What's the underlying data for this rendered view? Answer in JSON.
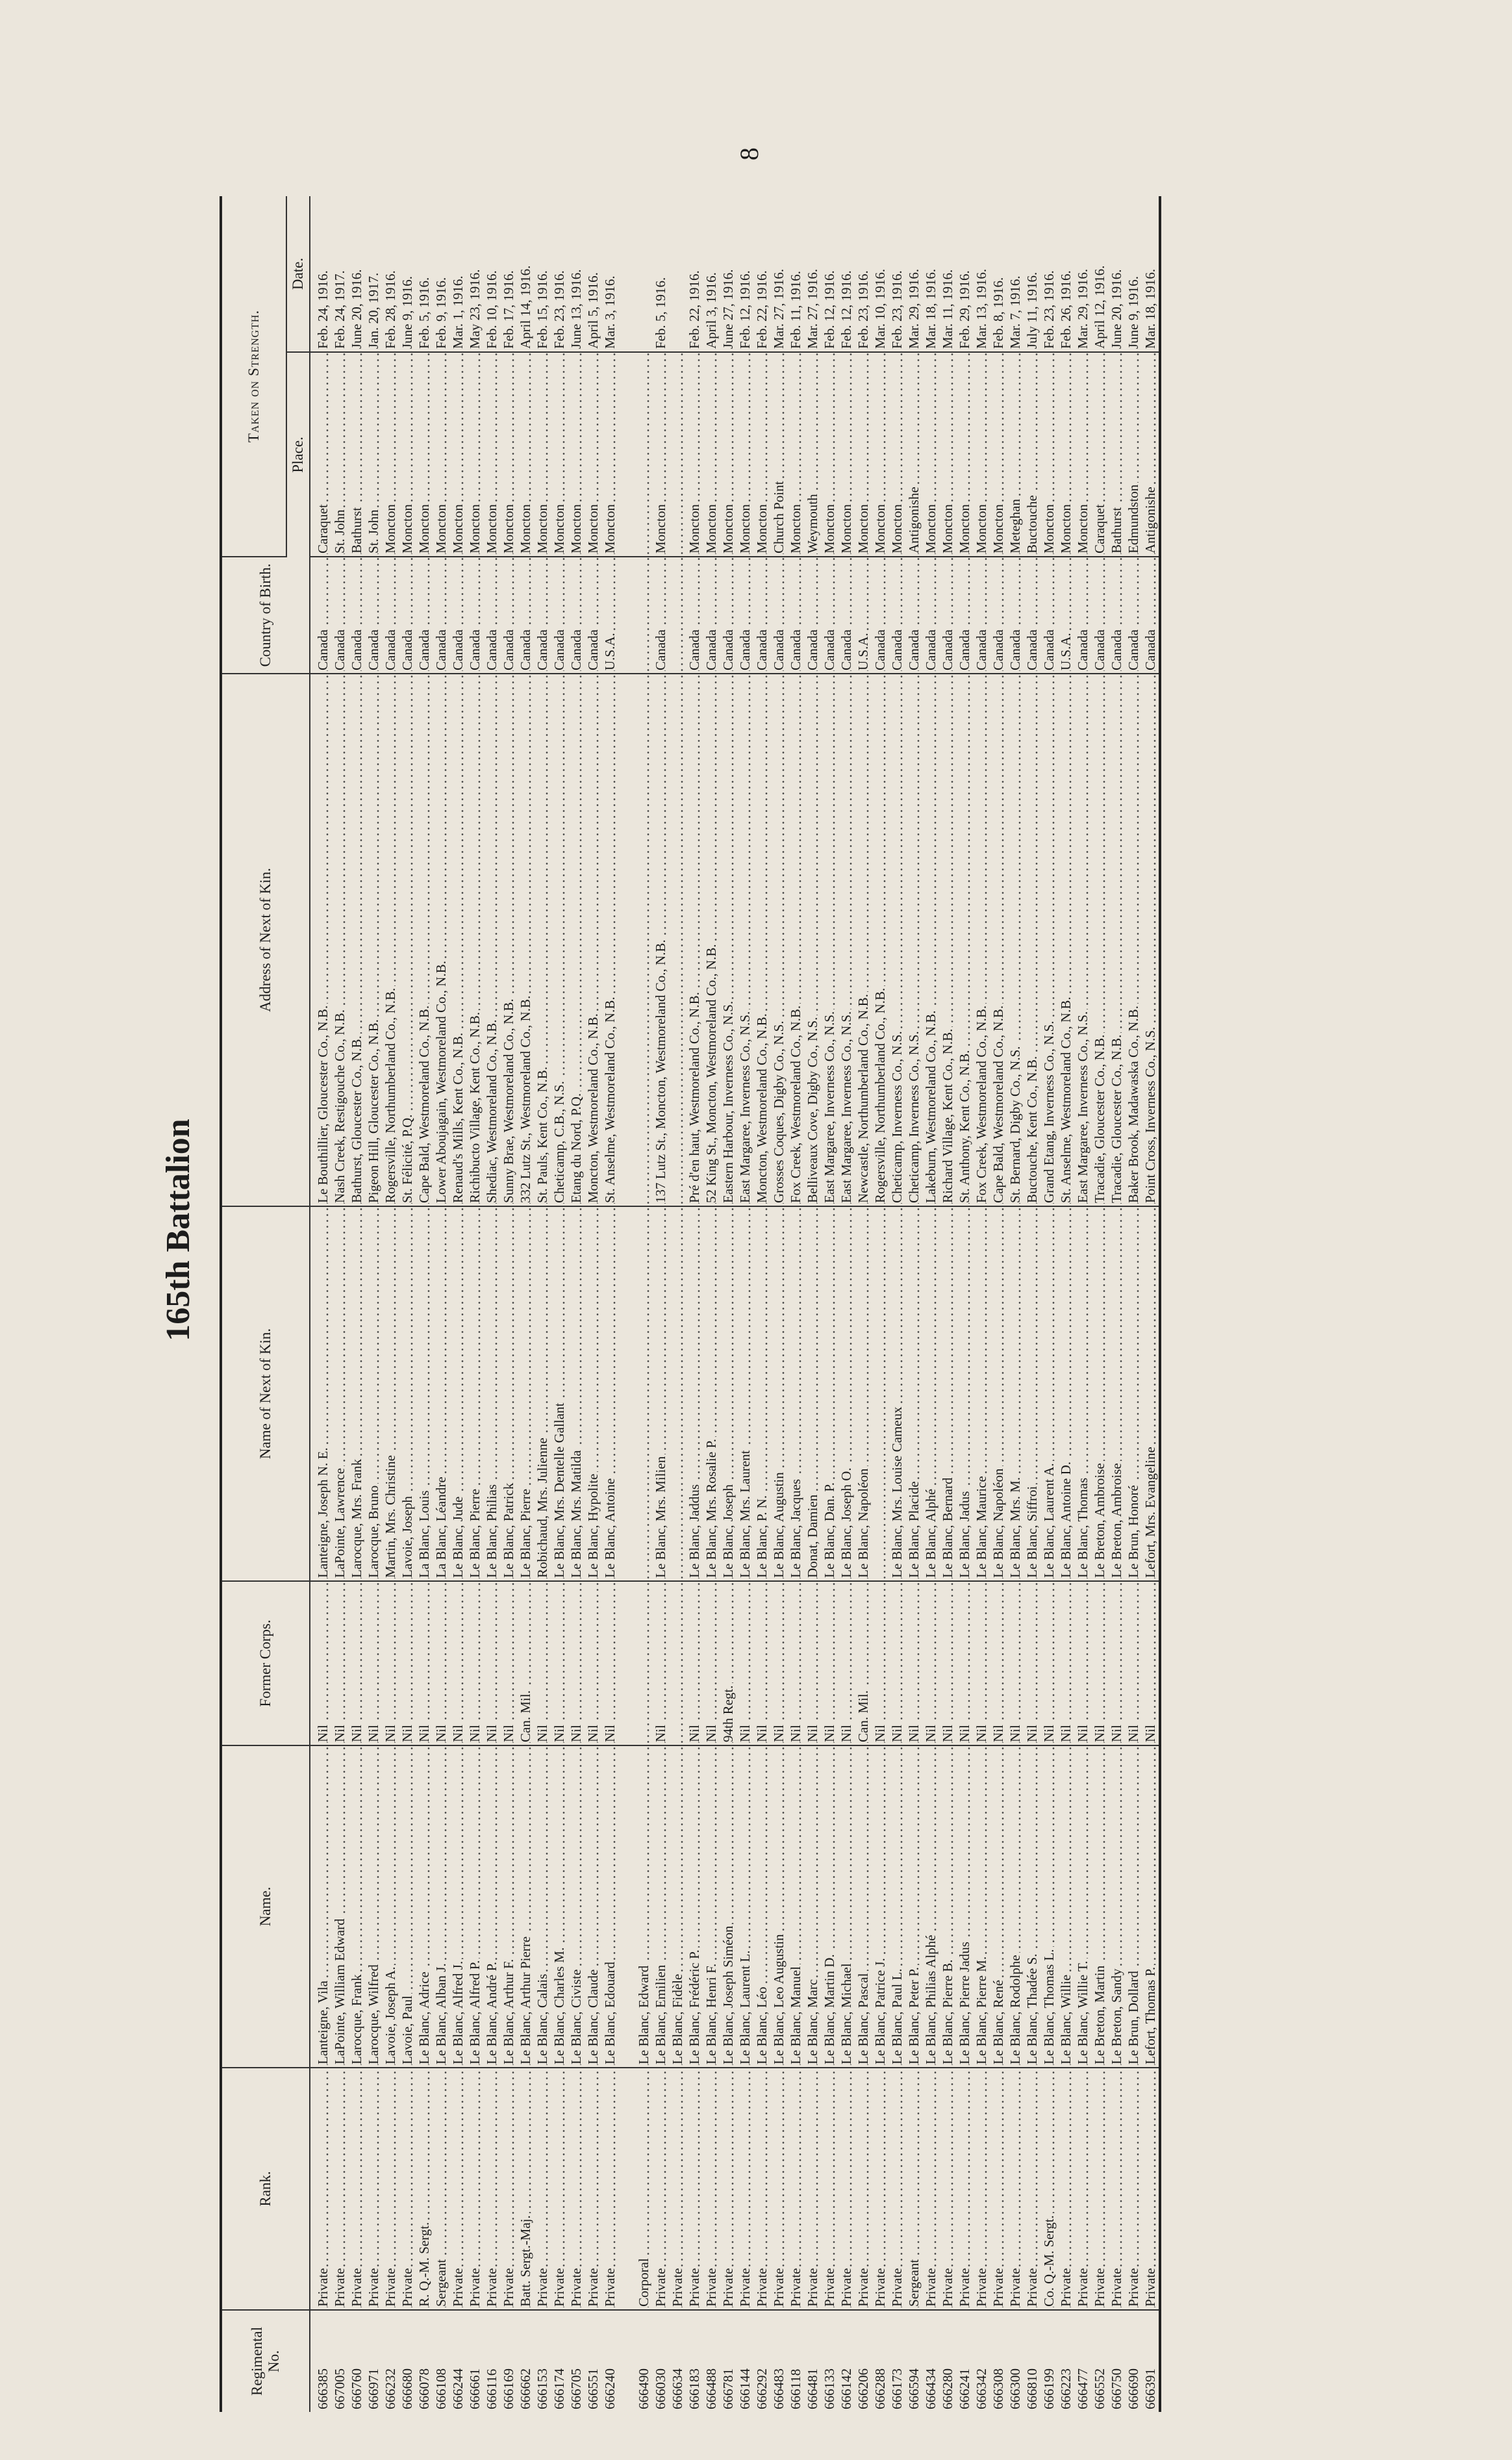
{
  "header": {
    "title": "165th Battalion",
    "page_number": "8"
  },
  "table": {
    "group_header": "Taken on Strength.",
    "columns": [
      "Regimental No.",
      "Rank.",
      "Name.",
      "Former Corps.",
      "Name of Next of Kin.",
      "Address of Next of Kin.",
      "Country of Birth.",
      "Place.",
      "Date."
    ],
    "rows": [
      [
        "666385",
        "Private",
        "Lanteigne, Vila",
        "Nil",
        "Lanteigne, Joseph N. E.",
        "Le Bouthillier, Gloucester Co., N.B.",
        "Canada",
        "Caraquet",
        "Feb. 24, 1916."
      ],
      [
        "667005",
        "Private",
        "LaPointe, William Edward",
        "Nil",
        "LaPointe, Lawrence",
        "Nash Creek, Restigouche Co., N.B.",
        "Canada",
        "St. John",
        "Feb. 24, 1917."
      ],
      [
        "666760",
        "Private",
        "Larocque, Frank",
        "Nil",
        "Larocque, Mrs. Frank",
        "Bathurst, Gloucester Co., N.B.",
        "Canada",
        "Bathurst",
        "June 20, 1916."
      ],
      [
        "666971",
        "Private",
        "Larocque, Wilfred",
        "Nil",
        "Larocque, Bruno",
        "Pigeon Hill, Gloucester Co., N.B.",
        "Canada",
        "St. John",
        "Jan. 20, 1917."
      ],
      [
        "666232",
        "Private",
        "Lavoie, Joseph A.",
        "Nil",
        "Martin, Mrs. Christine",
        "Rogersville, Northumberland Co., N.B.",
        "Canada",
        "Moncton",
        "Feb. 28, 1916."
      ],
      [
        "666680",
        "Private",
        "Lavoie, Paul",
        "Nil",
        "Lavoie, Joseph",
        "St. Félicité, P.Q.",
        "Canada",
        "Moncton",
        "June 9, 1916."
      ],
      [
        "666078",
        "R. Q.-M. Sergt.",
        "Le Blanc, Adrice",
        "Nil",
        "La Blanc, Louis",
        "Cape Bald, Westmoreland Co., N.B.",
        "Canada",
        "Moncton",
        "Feb. 5, 1916."
      ],
      [
        "666108",
        "Sergeant",
        "Le Blanc, Alban J.",
        "Nil",
        "La Blanc, Léandre",
        "Lower Aboujagain, Westmoreland Co., N.B.",
        "Canada",
        "Moncton",
        "Feb. 9, 1916."
      ],
      [
        "666244",
        "Private",
        "Le Blanc, Alfred J.",
        "Nil",
        "Le Blanc, Jude",
        "Renaud's Mills, Kent Co., N.B.",
        "Canada",
        "Moncton",
        "Mar. 1, 1916."
      ],
      [
        "666661",
        "Private",
        "Le Blanc, Alfred P.",
        "Nil",
        "Le Blanc, Pierre",
        "Richibucto Village, Kent Co., N.B.",
        "Canada",
        "Moncton",
        "May 23, 1916."
      ],
      [
        "666116",
        "Private",
        "Le Blanc, André P.",
        "Nil",
        "Le Blanc, Philias",
        "Shediac, Westmoreland Co., N.B.",
        "Canada",
        "Moncton",
        "Feb. 10, 1916."
      ],
      [
        "666169",
        "Private",
        "Le Blanc, Arthur F.",
        "Nil",
        "Le Blanc, Patrick",
        "Sunny Brae, Westmoreland Co., N.B.",
        "Canada",
        "Moncton",
        "Feb. 17, 1916."
      ],
      [
        "666662",
        "Batt. Sergt.-Maj.",
        "Le Blanc, Arthur Pierre",
        "Can. Mil.",
        "Le Blanc, Pierre",
        "332 Lutz St., Westmoreland Co., N.B.",
        "Canada",
        "Moncton",
        "April 14, 1916."
      ],
      [
        "666153",
        "Private",
        "Le Blanc, Calais",
        "Nil",
        "Robichaud, Mrs. Julienne",
        "St. Pauls, Kent Co., N.B.",
        "Canada",
        "Moncton",
        "Feb. 15, 1916."
      ],
      [
        "666174",
        "Private",
        "Le Blanc, Charles M.",
        "Nil",
        "Le Blanc, Mrs. Dentelle Gallant",
        "Cheticamp, C.B., N.S.",
        "Canada",
        "Moncton",
        "Feb. 23, 1916."
      ],
      [
        "666705",
        "Private",
        "Le Blanc, Civiste",
        "Nil",
        "Le Blanc, Mrs. Matilda",
        "Etang du Nord, P.Q.",
        "Canada",
        "Moncton",
        "June 13, 1916."
      ],
      [
        "666551",
        "Private",
        "Le Blanc, Claude",
        "Nil",
        "Le Blanc, Hypolite",
        "Moncton, Westmoreland Co., N.B.",
        "Canada",
        "Moncton",
        "April 5, 1916."
      ],
      [
        "666240",
        "Private",
        "Le Blanc, Edouard",
        "Nil",
        "Le Blanc, Antoine",
        "St. Anselme, Westmoreland Co., N.B.",
        "U.S.A.",
        "Moncton",
        "Mar. 3, 1916."
      ],
      [
        "666490",
        "Corporal",
        "Le Blanc, Edward",
        null,
        null,
        null,
        null,
        null,
        null
      ],
      [
        "666030",
        "Private",
        "Le Blanc, Emilien",
        "Nil",
        "Le Blanc, Mrs. Milien",
        "137 Lutz St., Moncton, Westmoreland Co., N.B.",
        "Canada",
        "Moncton",
        "Feb. 5, 1916."
      ],
      [
        "666634",
        "Private",
        "Le Blanc, Fidèle",
        null,
        null,
        null,
        null,
        null,
        null
      ],
      [
        "666183",
        "Private",
        "Le Blanc, Frédéric P.",
        "Nil",
        "Le Blanc, Jaddus",
        "Pré d'en haut, Westmoreland Co., N.B.",
        "Canada",
        "Moncton",
        "Feb. 22, 1916."
      ],
      [
        "666488",
        "Private",
        "Le Blanc, Henri F.",
        "Nil",
        "Le Blanc, Mrs. Rosalie P.",
        "52 King St., Moncton, Westmoreland Co., N.B.",
        "Canada",
        "Moncton",
        "April 3, 1916."
      ],
      [
        "666781",
        "Private",
        "Le Blanc, Joseph Siméon",
        "94th Regt.",
        "Le Blanc, Joseph",
        "Eastern Harbour, Inverness Co., N.S.",
        "Canada",
        "Moncton",
        "June 27, 1916."
      ],
      [
        "666144",
        "Private",
        "Le Blanc, Laurent L.",
        "Nil",
        "Le Blanc, Mrs. Laurent",
        "East Margaree, Inverness Co., N.S.",
        "Canada",
        "Moncton",
        "Feb. 12, 1916."
      ],
      [
        "666292",
        "Private",
        "Le Blanc, Léo",
        "Nil",
        "Le Blanc, P. N.",
        "Moncton, Westmoreland Co., N.B.",
        "Canada",
        "Moncton",
        "Feb. 22, 1916."
      ],
      [
        "666483",
        "Private",
        "Le Blanc, Leo Augustin",
        "Nil",
        "Le Blanc, Augustin",
        "Grosses Coques, Digby Co., N.S.",
        "Canada",
        "Church Point",
        "Mar. 27, 1916."
      ],
      [
        "666118",
        "Private",
        "Le Blanc, Manuel",
        "Nil",
        "Le Blanc, Jacques",
        "Fox Creek, Westmoreland Co., N.B.",
        "Canada",
        "Moncton",
        "Feb. 11, 1916."
      ],
      [
        "666481",
        "Private",
        "Le Blanc, Marc",
        "Nil",
        "Donat, Damien",
        "Belliveaux Cove, Digby Co., N.S.",
        "Canada",
        "Weymouth",
        "Mar. 27, 1916."
      ],
      [
        "666133",
        "Private",
        "Le Blanc, Martin D.",
        "Nil",
        "Le Blanc, Dan. P.",
        "East Margaree, Inverness Co., N.S.",
        "Canada",
        "Moncton",
        "Feb. 12, 1916."
      ],
      [
        "666142",
        "Private",
        "Le Blanc, Michael",
        "Nil",
        "Le Blanc, Joseph O.",
        "East Margaree, Inverness Co., N.S.",
        "Canada",
        "Moncton",
        "Feb. 12, 1916."
      ],
      [
        "666206",
        "Private",
        "Le Blanc, Pascal",
        "Can. Mil.",
        "Le Blanc, Napoléon",
        "Newcastle, Northumberland Co., N.B.",
        "U.S.A.",
        "Moncton",
        "Feb. 23, 1916."
      ],
      [
        "666288",
        "Private",
        "Le Blanc, Patrice J.",
        "Nil",
        null,
        "Rogersville, Northumberland Co., N.B.",
        "Canada",
        "Moncton",
        "Mar. 10, 1916."
      ],
      [
        "666173",
        "Private",
        "Le Blanc, Paul L.",
        "Nil",
        "Le Blanc, Mrs. Louise Cameux",
        "Cheticamp, Inverness Co., N.S.",
        "Canada",
        "Moncton",
        "Feb. 23, 1916."
      ],
      [
        "666594",
        "Sergeant",
        "Le Blanc, Peter P.",
        "Nil",
        "Le Blanc, Placide",
        "Cheticamp, Inverness Co., N.S.",
        "Canada",
        "Antigonishe",
        "Mar. 29, 1916."
      ],
      [
        "666434",
        "Private",
        "Le Blanc, Philias Alphé",
        "Nil",
        "Le Blanc, Alphé",
        "Lakeburn, Westmoreland Co., N.B.",
        "Canada",
        "Moncton",
        "Mar. 18, 1916."
      ],
      [
        "666280",
        "Private",
        "Le Blanc, Pierre B.",
        "Nil",
        "Le Blanc, Bernard",
        "Richard Village, Kent Co., N.B.",
        "Canada",
        "Moncton",
        "Mar. 11, 1916."
      ],
      [
        "666241",
        "Private",
        "Le Blanc, Pierre Jadus",
        "Nil",
        "Le Blanc, Jadus",
        "St. Anthony, Kent Co., N.B.",
        "Canada",
        "Moncton",
        "Feb. 29, 1916."
      ],
      [
        "666342",
        "Private",
        "Le Blanc, Pierre M.",
        "Nil",
        "Le Blanc, Maurice",
        "Fox Creek, Westmoreland Co., N.B.",
        "Canada",
        "Moncton",
        "Mar. 13, 1916."
      ],
      [
        "666308",
        "Private",
        "Le Blanc, René",
        "Nil",
        "Le Blanc, Napoléon",
        "Cape Bald, Westmoreland Co., N.B.",
        "Canada",
        "Moncton",
        "Feb. 8, 1916."
      ],
      [
        "666300",
        "Private",
        "Le Blanc, Rodolphe",
        "Nil",
        "Le Blanc, Mrs. M.",
        "St. Bernard, Digby Co., N.S.",
        "Canada",
        "Meteghan",
        "Mar. 7, 1916."
      ],
      [
        "666810",
        "Private",
        "Le Blanc, Thadée S.",
        "Nil",
        "Le Blanc, Siffroi",
        "Buctouche, Kent Co., N.B.",
        "Canada",
        "Buctouche",
        "July 11, 1916."
      ],
      [
        "666199",
        "Co. Q.-M. Sergt.",
        "Le Blanc, Thomas L.",
        "Nil",
        "Le Blanc, Laurent A.",
        "Grand Etang, Inverness Co., N.S.",
        "Canada",
        "Moncton",
        "Feb. 23, 1916."
      ],
      [
        "666223",
        "Private",
        "Le Blanc, Willie",
        "Nil",
        "Le Blanc, Antoine D.",
        "St. Anselme, Westmoreland Co., N.B.",
        "U.S.A.",
        "Moncton",
        "Feb. 26, 1916."
      ],
      [
        "666477",
        "Private",
        "Le Blanc, Willie T.",
        "Nil",
        "Le Blanc, Thomas",
        "East Margaree, Inverness Co., N.S.",
        "Canada",
        "Moncton",
        "Mar. 29, 1916."
      ],
      [
        "666552",
        "Private",
        "Le Breton, Martin",
        "Nil",
        "Le Breton, Ambroise",
        "Tracadie, Gloucester Co., N.B.",
        "Canada",
        "Caraquet",
        "April 12, 1916."
      ],
      [
        "666750",
        "Private",
        "Le Breton, Sandy",
        "Nil",
        "Le Breton, Ambroise",
        "Tracadie, Gloucester Co., N.B.",
        "Canada",
        "Bathurst",
        "June 20, 1916."
      ],
      [
        "666690",
        "Private",
        "Le Brun, Dollard",
        "Nil",
        "Le Brun, Honoré",
        "Baker Brook, Madawaska Co., N.B.",
        "Canada",
        "Edmundston",
        "June 9, 1916."
      ],
      [
        "666391",
        "Private",
        "Lefort, Thomas P.",
        "Nil",
        "Lefort, Mrs. Evangeline",
        "Point Cross, Inverness Co., N.S.",
        "Canada",
        "Antigonishe",
        "Mar. 18, 1916."
      ]
    ]
  }
}
